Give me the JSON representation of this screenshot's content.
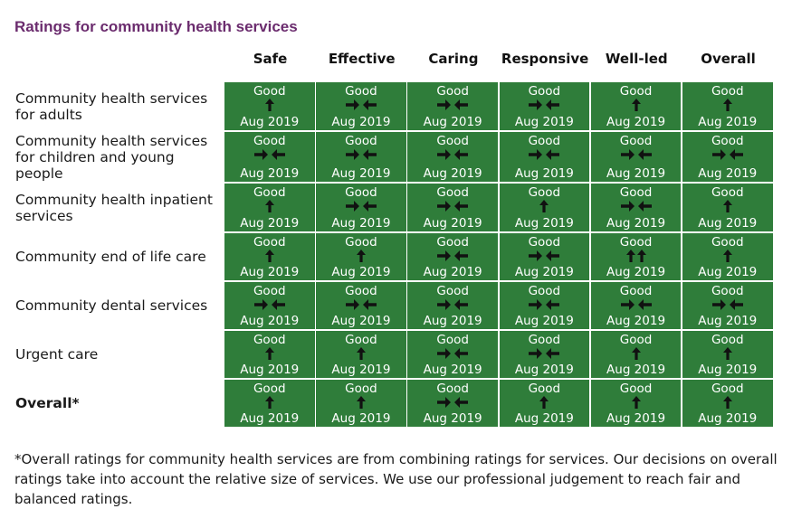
{
  "title": "Ratings for community health services",
  "columns": [
    "Safe",
    "Effective",
    "Caring",
    "Responsive",
    "Well-led",
    "Overall"
  ],
  "rows": [
    {
      "label": "Community health services for adults",
      "cells": [
        {
          "rating": "Good",
          "trend": "up",
          "date": "Aug 2019"
        },
        {
          "rating": "Good",
          "trend": "same",
          "date": "Aug 2019"
        },
        {
          "rating": "Good",
          "trend": "same",
          "date": "Aug 2019"
        },
        {
          "rating": "Good",
          "trend": "same",
          "date": "Aug 2019"
        },
        {
          "rating": "Good",
          "trend": "up",
          "date": "Aug 2019"
        },
        {
          "rating": "Good",
          "trend": "up",
          "date": "Aug 2019"
        }
      ]
    },
    {
      "label": "Community health services for children and young people",
      "cells": [
        {
          "rating": "Good",
          "trend": "same",
          "date": "Aug 2019"
        },
        {
          "rating": "Good",
          "trend": "same",
          "date": "Aug 2019"
        },
        {
          "rating": "Good",
          "trend": "same",
          "date": "Aug 2019"
        },
        {
          "rating": "Good",
          "trend": "same",
          "date": "Aug 2019"
        },
        {
          "rating": "Good",
          "trend": "same",
          "date": "Aug 2019"
        },
        {
          "rating": "Good",
          "trend": "same",
          "date": "Aug 2019"
        }
      ]
    },
    {
      "label": "Community health inpatient services",
      "cells": [
        {
          "rating": "Good",
          "trend": "up",
          "date": "Aug 2019"
        },
        {
          "rating": "Good",
          "trend": "same",
          "date": "Aug 2019"
        },
        {
          "rating": "Good",
          "trend": "same",
          "date": "Aug 2019"
        },
        {
          "rating": "Good",
          "trend": "up",
          "date": "Aug 2019"
        },
        {
          "rating": "Good",
          "trend": "same",
          "date": "Aug 2019"
        },
        {
          "rating": "Good",
          "trend": "up",
          "date": "Aug 2019"
        }
      ]
    },
    {
      "label": "Community end of life care",
      "cells": [
        {
          "rating": "Good",
          "trend": "up",
          "date": "Aug 2019"
        },
        {
          "rating": "Good",
          "trend": "up",
          "date": "Aug 2019"
        },
        {
          "rating": "Good",
          "trend": "same",
          "date": "Aug 2019"
        },
        {
          "rating": "Good",
          "trend": "same",
          "date": "Aug 2019"
        },
        {
          "rating": "Good",
          "trend": "up-up",
          "date": "Aug 2019"
        },
        {
          "rating": "Good",
          "trend": "up",
          "date": "Aug 2019"
        }
      ]
    },
    {
      "label": "Community dental services",
      "cells": [
        {
          "rating": "Good",
          "trend": "same",
          "date": "Aug 2019"
        },
        {
          "rating": "Good",
          "trend": "same",
          "date": "Aug 2019"
        },
        {
          "rating": "Good",
          "trend": "same",
          "date": "Aug 2019"
        },
        {
          "rating": "Good",
          "trend": "same",
          "date": "Aug 2019"
        },
        {
          "rating": "Good",
          "trend": "same",
          "date": "Aug 2019"
        },
        {
          "rating": "Good",
          "trend": "same",
          "date": "Aug 2019"
        }
      ]
    },
    {
      "label": "Urgent care",
      "cells": [
        {
          "rating": "Good",
          "trend": "up",
          "date": "Aug 2019"
        },
        {
          "rating": "Good",
          "trend": "up",
          "date": "Aug 2019"
        },
        {
          "rating": "Good",
          "trend": "same",
          "date": "Aug 2019"
        },
        {
          "rating": "Good",
          "trend": "same",
          "date": "Aug 2019"
        },
        {
          "rating": "Good",
          "trend": "up",
          "date": "Aug 2019"
        },
        {
          "rating": "Good",
          "trend": "up",
          "date": "Aug 2019"
        }
      ]
    },
    {
      "label": "Overall*",
      "bold": true,
      "cells": [
        {
          "rating": "Good",
          "trend": "up",
          "date": "Aug 2019"
        },
        {
          "rating": "Good",
          "trend": "up",
          "date": "Aug 2019"
        },
        {
          "rating": "Good",
          "trend": "same",
          "date": "Aug 2019"
        },
        {
          "rating": "Good",
          "trend": "up",
          "date": "Aug 2019"
        },
        {
          "rating": "Good",
          "trend": "up",
          "date": "Aug 2019"
        },
        {
          "rating": "Good",
          "trend": "up",
          "date": "Aug 2019"
        }
      ]
    }
  ],
  "colors": {
    "cell_bg": "#2f7d3a",
    "title": "#6b2c6e"
  },
  "footnote": "*Overall ratings for community health services are from combining ratings for services. Our decisions on overall ratings take into account the relative size of services. We use our professional judgement to reach fair and balanced ratings."
}
